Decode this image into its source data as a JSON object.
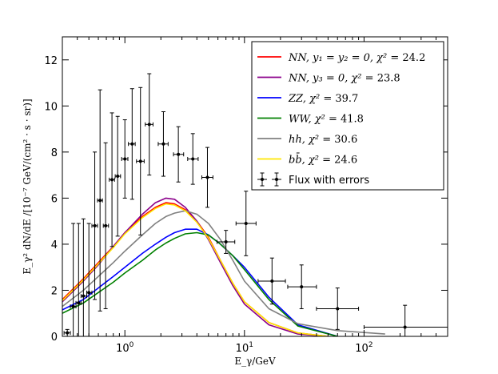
{
  "chart_data": {
    "type": "line",
    "xscale": "log",
    "xlim": [
      0.3,
      500
    ],
    "ylim": [
      0,
      13
    ],
    "xlabel": "E_γ/GeV",
    "ylabel": "E_γ² dN/dE /[10⁻⁷ GeV/(cm² · s · sr)]",
    "xticks": [
      {
        "value": 1,
        "base": "10",
        "exp": "0"
      },
      {
        "value": 10,
        "base": "10",
        "exp": "1"
      },
      {
        "value": 100,
        "base": "10",
        "exp": "2"
      }
    ],
    "yticks": [
      "0",
      "2",
      "4",
      "6",
      "8",
      "10",
      "12"
    ],
    "legend_position": "top-right",
    "series": [
      {
        "name": "NN, y1 = y2 = 0, χ² = 24.2",
        "label_main": "NN, y₁ = y₂ = 0, χ²",
        "label_value": " = 24.2",
        "color": "#ff0000",
        "x": [
          0.3,
          0.45,
          0.6,
          0.8,
          1.0,
          1.4,
          1.8,
          2.2,
          2.6,
          3.2,
          4.0,
          5.0,
          6.3,
          8.0,
          10.0,
          16.0,
          28.0,
          50.0
        ],
        "y": [
          1.6,
          2.5,
          3.2,
          3.9,
          4.5,
          5.2,
          5.6,
          5.8,
          5.75,
          5.5,
          5.0,
          4.3,
          3.3,
          2.3,
          1.5,
          0.6,
          0.15,
          0.0
        ]
      },
      {
        "name": "NN, y3 = 0, χ² = 23.8",
        "label_main": "NN, y₃ = 0, χ²",
        "label_value": " = 23.8",
        "color": "#8b008b",
        "x": [
          0.3,
          0.45,
          0.6,
          0.8,
          1.0,
          1.4,
          1.8,
          2.2,
          2.6,
          3.2,
          4.0,
          5.0,
          6.3,
          8.0,
          10.0,
          16.0,
          28.0,
          50.0
        ],
        "y": [
          1.5,
          2.4,
          3.1,
          3.9,
          4.5,
          5.3,
          5.8,
          6.0,
          5.95,
          5.6,
          5.0,
          4.2,
          3.2,
          2.2,
          1.4,
          0.5,
          0.1,
          0.0
        ]
      },
      {
        "name": "ZZ, χ² = 39.7",
        "label_main": "ZZ, χ²",
        "label_value": " = 39.7",
        "color": "#0000ff",
        "x": [
          0.3,
          0.45,
          0.6,
          0.8,
          1.0,
          1.4,
          1.8,
          2.2,
          2.6,
          3.2,
          4.0,
          5.0,
          6.3,
          8.0,
          10.0,
          16.0,
          28.0,
          60.0
        ],
        "y": [
          1.15,
          1.6,
          2.1,
          2.6,
          3.0,
          3.6,
          4.0,
          4.3,
          4.5,
          4.65,
          4.65,
          4.4,
          4.0,
          3.5,
          3.0,
          1.7,
          0.5,
          0.0
        ]
      },
      {
        "name": "WW, χ² = 41.8",
        "label_main": "WW, χ²",
        "label_value": " = 41.8",
        "color": "#008000",
        "x": [
          0.3,
          0.45,
          0.6,
          0.8,
          1.0,
          1.4,
          1.8,
          2.2,
          2.6,
          3.2,
          4.0,
          5.0,
          6.3,
          8.0,
          10.0,
          16.0,
          28.0,
          60.0
        ],
        "y": [
          1.0,
          1.45,
          1.9,
          2.35,
          2.75,
          3.3,
          3.75,
          4.05,
          4.25,
          4.45,
          4.5,
          4.4,
          4.0,
          3.5,
          2.9,
          1.6,
          0.45,
          0.0
        ]
      },
      {
        "name": "hh, χ² = 30.6",
        "label_main": "hh, χ²",
        "label_value": " = 30.6",
        "color": "#808080",
        "x": [
          0.3,
          0.45,
          0.6,
          0.8,
          1.0,
          1.4,
          1.8,
          2.2,
          2.6,
          3.2,
          4.0,
          5.0,
          6.3,
          8.0,
          10.0,
          16.0,
          28.0,
          60.0,
          150.0
        ],
        "y": [
          1.3,
          2.0,
          2.6,
          3.2,
          3.7,
          4.4,
          4.9,
          5.2,
          5.35,
          5.45,
          5.3,
          4.9,
          4.2,
          3.3,
          2.4,
          1.2,
          0.55,
          0.25,
          0.1
        ]
      },
      {
        "name": "bb̄, χ² = 24.6",
        "label_main": "bb̄, χ²",
        "label_value": " = 24.6",
        "color": "#ffe600",
        "x": [
          0.3,
          0.45,
          0.6,
          0.8,
          1.0,
          1.4,
          1.8,
          2.2,
          2.6,
          3.2,
          4.0,
          5.0,
          6.3,
          8.0,
          10.0,
          16.0,
          28.0,
          50.0
        ],
        "y": [
          1.55,
          2.45,
          3.15,
          3.85,
          4.45,
          5.15,
          5.55,
          5.75,
          5.7,
          5.45,
          4.95,
          4.25,
          3.3,
          2.3,
          1.5,
          0.6,
          0.15,
          0.0
        ]
      }
    ],
    "data_points": {
      "name": "Flux with errors",
      "points": [
        {
          "x": 0.33,
          "y": 0.15,
          "yerr": 0.15,
          "xlo": 0.31,
          "xhi": 0.35
        },
        {
          "x": 0.37,
          "y": 1.3,
          "yerr": 3.6,
          "xlo": 0.35,
          "xhi": 0.39
        },
        {
          "x": 0.41,
          "y": 1.45,
          "yerr": 3.45,
          "xlo": 0.39,
          "xhi": 0.43
        },
        {
          "x": 0.45,
          "y": 1.75,
          "yerr": 3.35,
          "xlo": 0.43,
          "xhi": 0.48
        },
        {
          "x": 0.5,
          "y": 1.9,
          "yerr": 3.0,
          "xlo": 0.48,
          "xhi": 0.53
        },
        {
          "x": 0.56,
          "y": 4.8,
          "yerr": 3.2,
          "xlo": 0.53,
          "xhi": 0.59
        },
        {
          "x": 0.62,
          "y": 5.9,
          "yerr": 4.8,
          "xlo": 0.59,
          "xhi": 0.65
        },
        {
          "x": 0.69,
          "y": 4.8,
          "yerr": 3.6,
          "xlo": 0.66,
          "xhi": 0.73
        },
        {
          "x": 0.78,
          "y": 6.8,
          "yerr": 2.9,
          "xlo": 0.74,
          "xhi": 0.82
        },
        {
          "x": 0.87,
          "y": 6.95,
          "yerr": 2.6,
          "xlo": 0.83,
          "xhi": 0.92
        },
        {
          "x": 1.0,
          "y": 7.7,
          "yerr": 1.7,
          "xlo": 0.94,
          "xhi": 1.06
        },
        {
          "x": 1.15,
          "y": 8.35,
          "yerr": 2.4,
          "xlo": 1.07,
          "xhi": 1.22
        },
        {
          "x": 1.35,
          "y": 7.6,
          "yerr": 3.2,
          "xlo": 1.25,
          "xhi": 1.45
        },
        {
          "x": 1.6,
          "y": 9.2,
          "yerr": 2.2,
          "xlo": 1.48,
          "xhi": 1.72
        },
        {
          "x": 2.1,
          "y": 8.35,
          "yerr": 1.4,
          "xlo": 1.9,
          "xhi": 2.3
        },
        {
          "x": 2.8,
          "y": 7.9,
          "yerr": 1.2,
          "xlo": 2.55,
          "xhi": 3.1
        },
        {
          "x": 3.7,
          "y": 7.7,
          "yerr": 1.1,
          "xlo": 3.35,
          "xhi": 4.1
        },
        {
          "x": 4.9,
          "y": 6.9,
          "yerr": 1.3,
          "xlo": 4.4,
          "xhi": 5.45
        },
        {
          "x": 7.0,
          "y": 4.1,
          "yerr": 0.5,
          "xlo": 5.9,
          "xhi": 8.3
        },
        {
          "x": 10.3,
          "y": 4.9,
          "yerr": 1.4,
          "xlo": 8.5,
          "xhi": 12.5
        },
        {
          "x": 17.0,
          "y": 2.4,
          "yerr": 1.0,
          "xlo": 13.0,
          "xhi": 22.0
        },
        {
          "x": 30.0,
          "y": 2.15,
          "yerr": 0.95,
          "xlo": 23.0,
          "xhi": 40.0
        },
        {
          "x": 60.0,
          "y": 1.2,
          "yerr": 0.9,
          "xlo": 40.0,
          "xhi": 90.0
        },
        {
          "x": 220.0,
          "y": 0.4,
          "yerr": 0.95,
          "xlo": 100.0,
          "xhi": 500.0
        }
      ]
    }
  }
}
